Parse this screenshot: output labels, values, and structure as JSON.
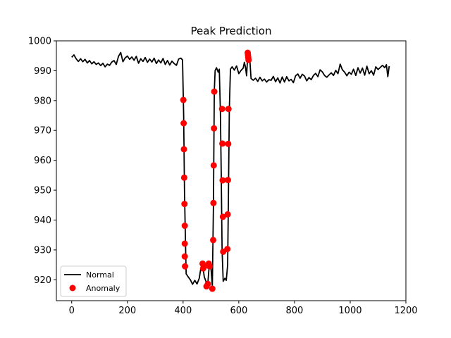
{
  "chart_data": {
    "type": "line",
    "title": "Peak Prediction",
    "xlabel": "",
    "ylabel": "",
    "xlim": [
      -55,
      1200
    ],
    "ylim": [
      913,
      1000
    ],
    "x_ticks": [
      0,
      200,
      400,
      600,
      800,
      1000,
      1200
    ],
    "y_ticks": [
      920,
      930,
      940,
      950,
      960,
      970,
      980,
      990,
      1000
    ],
    "grid": false,
    "legend_position": "lower-left",
    "series": [
      {
        "name": "Normal",
        "kind": "line",
        "color": "#000000",
        "points": [
          [
            0,
            994.5
          ],
          [
            8,
            995.3
          ],
          [
            16,
            994.0
          ],
          [
            24,
            993.1
          ],
          [
            32,
            994.0
          ],
          [
            40,
            993.0
          ],
          [
            48,
            993.8
          ],
          [
            56,
            992.6
          ],
          [
            64,
            993.4
          ],
          [
            72,
            992.3
          ],
          [
            80,
            993.0
          ],
          [
            88,
            992.1
          ],
          [
            96,
            992.6
          ],
          [
            104,
            991.7
          ],
          [
            112,
            992.5
          ],
          [
            120,
            991.3
          ],
          [
            128,
            992.2
          ],
          [
            136,
            991.8
          ],
          [
            144,
            992.9
          ],
          [
            152,
            993.4
          ],
          [
            160,
            992.1
          ],
          [
            168,
            994.8
          ],
          [
            176,
            996.1
          ],
          [
            184,
            993.0
          ],
          [
            192,
            994.3
          ],
          [
            200,
            994.9
          ],
          [
            208,
            993.8
          ],
          [
            216,
            994.6
          ],
          [
            224,
            993.5
          ],
          [
            232,
            994.8
          ],
          [
            240,
            992.5
          ],
          [
            248,
            994.0
          ],
          [
            256,
            993.1
          ],
          [
            264,
            994.4
          ],
          [
            272,
            992.8
          ],
          [
            280,
            993.9
          ],
          [
            288,
            992.9
          ],
          [
            296,
            994.2
          ],
          [
            304,
            992.4
          ],
          [
            312,
            993.6
          ],
          [
            320,
            992.6
          ],
          [
            328,
            994.1
          ],
          [
            336,
            992.1
          ],
          [
            344,
            993.4
          ],
          [
            352,
            991.9
          ],
          [
            360,
            993.2
          ],
          [
            368,
            992.4
          ],
          [
            376,
            991.8
          ],
          [
            384,
            993.9
          ],
          [
            392,
            994.2
          ],
          [
            398,
            993.6
          ],
          [
            402,
            975.0
          ],
          [
            405,
            950.0
          ],
          [
            408,
            935.0
          ],
          [
            411,
            922.0
          ],
          [
            418,
            921.0
          ],
          [
            426,
            920.0
          ],
          [
            434,
            918.5
          ],
          [
            442,
            919.8
          ],
          [
            450,
            918.6
          ],
          [
            458,
            920.5
          ],
          [
            464,
            924.0
          ],
          [
            470,
            925.2
          ],
          [
            476,
            921.0
          ],
          [
            482,
            919.5
          ],
          [
            488,
            917.8
          ],
          [
            494,
            925.0
          ],
          [
            500,
            924.0
          ],
          [
            505,
            918.0
          ],
          [
            509,
            945.0
          ],
          [
            512,
            983.0
          ],
          [
            515,
            990.0
          ],
          [
            520,
            991.0
          ],
          [
            526,
            989.5
          ],
          [
            530,
            990.5
          ],
          [
            534,
            976.0
          ],
          [
            537,
            955.0
          ],
          [
            540,
            930.0
          ],
          [
            544,
            919.5
          ],
          [
            550,
            920.5
          ],
          [
            555,
            919.8
          ],
          [
            560,
            925.0
          ],
          [
            563,
            950.0
          ],
          [
            566,
            977.0
          ],
          [
            570,
            990.5
          ],
          [
            576,
            991.3
          ],
          [
            584,
            990.2
          ],
          [
            592,
            991.6
          ],
          [
            600,
            989.0
          ],
          [
            608,
            990.1
          ],
          [
            616,
            990.9
          ],
          [
            620,
            992.8
          ],
          [
            624,
            991.2
          ],
          [
            628,
            988.3
          ],
          [
            632,
            995.0
          ],
          [
            636,
            994.2
          ],
          [
            640,
            993.1
          ],
          [
            644,
            987.4
          ],
          [
            652,
            986.8
          ],
          [
            660,
            987.5
          ],
          [
            668,
            986.4
          ],
          [
            676,
            987.8
          ],
          [
            684,
            986.6
          ],
          [
            692,
            987.2
          ],
          [
            700,
            986.2
          ],
          [
            708,
            987.0
          ],
          [
            716,
            986.8
          ],
          [
            724,
            988.1
          ],
          [
            732,
            986.3
          ],
          [
            740,
            987.6
          ],
          [
            748,
            985.9
          ],
          [
            756,
            987.9
          ],
          [
            764,
            986.2
          ],
          [
            772,
            988.0
          ],
          [
            780,
            986.6
          ],
          [
            788,
            987.1
          ],
          [
            796,
            986.0
          ],
          [
            804,
            988.3
          ],
          [
            812,
            988.9
          ],
          [
            820,
            987.5
          ],
          [
            828,
            988.8
          ],
          [
            836,
            988.2
          ],
          [
            844,
            986.6
          ],
          [
            852,
            987.7
          ],
          [
            860,
            987.0
          ],
          [
            868,
            988.4
          ],
          [
            876,
            989.1
          ],
          [
            884,
            988.0
          ],
          [
            892,
            990.3
          ],
          [
            900,
            989.6
          ],
          [
            908,
            988.4
          ],
          [
            916,
            987.8
          ],
          [
            924,
            988.6
          ],
          [
            932,
            989.3
          ],
          [
            940,
            988.4
          ],
          [
            948,
            990.1
          ],
          [
            956,
            989.0
          ],
          [
            964,
            992.2
          ],
          [
            972,
            990.3
          ],
          [
            980,
            989.5
          ],
          [
            988,
            988.3
          ],
          [
            996,
            989.5
          ],
          [
            1004,
            988.8
          ],
          [
            1012,
            990.5
          ],
          [
            1020,
            988.4
          ],
          [
            1028,
            991.0
          ],
          [
            1036,
            989.2
          ],
          [
            1044,
            990.9
          ],
          [
            1052,
            988.5
          ],
          [
            1060,
            991.5
          ],
          [
            1068,
            989.0
          ],
          [
            1076,
            990.0
          ],
          [
            1084,
            988.5
          ],
          [
            1092,
            991.3
          ],
          [
            1100,
            990.4
          ],
          [
            1108,
            991.1
          ],
          [
            1116,
            991.8
          ],
          [
            1124,
            991.0
          ],
          [
            1130,
            992.0
          ],
          [
            1135,
            988.0
          ],
          [
            1140,
            991.5
          ]
        ]
      },
      {
        "name": "Anomaly",
        "kind": "scatter",
        "color": "#ff0000",
        "points": [
          [
            401,
            980.2
          ],
          [
            402,
            972.4
          ],
          [
            403,
            963.7
          ],
          [
            404,
            954.2
          ],
          [
            405,
            945.4
          ],
          [
            406,
            938.1
          ],
          [
            406,
            932.1
          ],
          [
            406,
            927.8
          ],
          [
            407,
            924.5
          ],
          [
            470,
            925.4
          ],
          [
            472,
            923.8
          ],
          [
            476,
            924.5
          ],
          [
            484,
            917.8
          ],
          [
            489,
            918.6
          ],
          [
            492,
            925.4
          ],
          [
            495,
            924.5
          ],
          [
            505,
            917.0
          ],
          [
            508,
            933.3
          ],
          [
            509,
            945.7
          ],
          [
            510,
            958.3
          ],
          [
            511,
            970.7
          ],
          [
            512,
            983.0
          ],
          [
            540,
            977.2
          ],
          [
            541,
            965.6
          ],
          [
            542,
            953.3
          ],
          [
            543,
            941.1
          ],
          [
            544,
            929.4
          ],
          [
            559,
            930.3
          ],
          [
            560,
            941.9
          ],
          [
            561,
            953.4
          ],
          [
            562,
            965.5
          ],
          [
            563,
            977.2
          ],
          [
            632,
            996.0
          ],
          [
            633,
            995.2
          ],
          [
            634,
            994.4
          ],
          [
            635,
            993.6
          ]
        ]
      }
    ]
  }
}
